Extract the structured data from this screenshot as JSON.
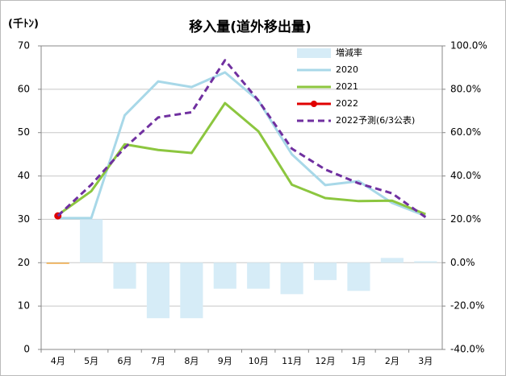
{
  "chart_data": {
    "type": "bar_line_combo",
    "title": "移入量(道外移出量)",
    "y_label": "(千ﾄﾝ)",
    "categories": [
      "4月",
      "5月",
      "6月",
      "7月",
      "8月",
      "9月",
      "10月",
      "11月",
      "12月",
      "1月",
      "2月",
      "3月"
    ],
    "series": [
      {
        "name": "増減率",
        "kind": "bar",
        "axis": "y2",
        "color": "#d6ecf7",
        "value_colors": [
          "#f0a030",
          "#d6ecf7",
          "#d6ecf7",
          "#d6ecf7",
          "#d6ecf7",
          "#d6ecf7",
          "#d6ecf7",
          "#d6ecf7",
          "#d6ecf7",
          "#d6ecf7",
          "#d6ecf7",
          "#d6ecf7"
        ],
        "values": [
          -0.5,
          20,
          -12,
          -25.6,
          -25.6,
          -12,
          -12,
          -14.5,
          -8,
          -13,
          2.2,
          0.7
        ]
      },
      {
        "name": "2020",
        "kind": "line",
        "color": "#a8d8e8",
        "values": [
          30.3,
          30.3,
          54,
          61.8,
          60.5,
          63.9,
          57.4,
          45,
          37.9,
          38.8,
          33.8,
          30.8
        ]
      },
      {
        "name": "2021",
        "kind": "line",
        "color": "#8cc63f",
        "values": [
          31,
          36.5,
          47.3,
          46,
          45.3,
          56.8,
          50.3,
          38,
          34.9,
          34.2,
          34.3,
          31.2
        ]
      },
      {
        "name": "2022",
        "kind": "line",
        "color": "#e00000",
        "marker": true,
        "values": [
          30.8,
          null,
          null,
          null,
          null,
          null,
          null,
          null,
          null,
          null,
          null,
          null
        ]
      },
      {
        "name": "2022予測(6/3公表)",
        "kind": "line",
        "color": "#7030a0",
        "dashed": true,
        "values": [
          30.8,
          38,
          46.5,
          53.5,
          54.7,
          66.7,
          57.4,
          46.3,
          41.5,
          38.3,
          36,
          30.5
        ]
      }
    ],
    "ylim": [
      0,
      70
    ],
    "yticks": [
      0,
      10,
      20,
      30,
      40,
      50,
      60,
      70
    ],
    "y2lim": [
      -40,
      100
    ],
    "y2ticks": [
      {
        "value": -40,
        "label": "-40.0%"
      },
      {
        "value": -20,
        "label": "-20.0%"
      },
      {
        "value": 0,
        "label": "0.0%"
      },
      {
        "value": 20,
        "label": "20.0%"
      },
      {
        "value": 40,
        "label": "40.0%"
      },
      {
        "value": 60,
        "label": "60.0%"
      },
      {
        "value": 80,
        "label": "80.0%"
      },
      {
        "value": 100,
        "label": "100.0%"
      }
    ],
    "grid": true,
    "legend": "top-right"
  }
}
